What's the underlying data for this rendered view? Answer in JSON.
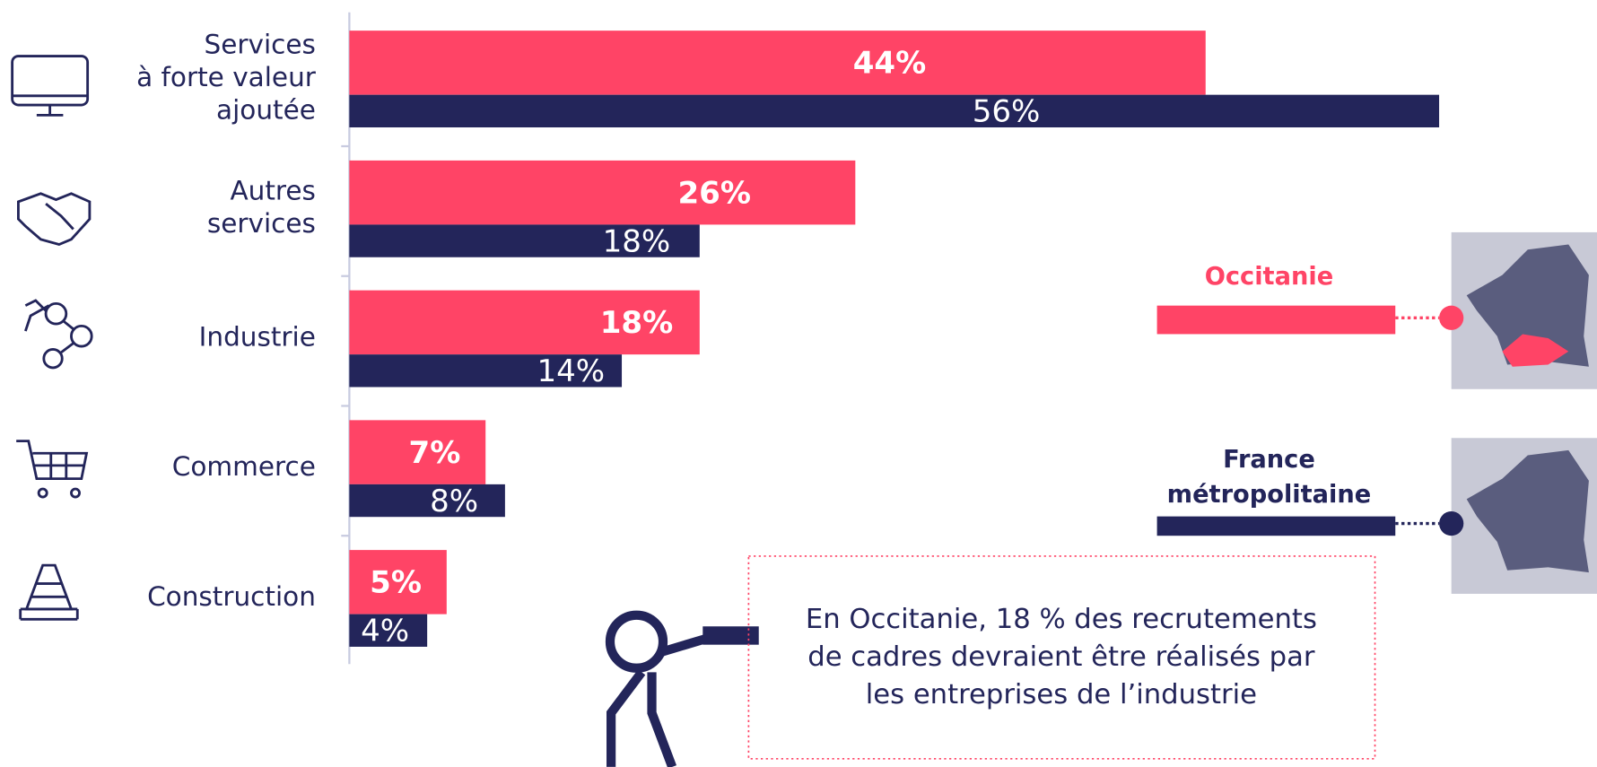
{
  "chart_data": {
    "type": "bar",
    "orientation": "horizontal",
    "categories": [
      [
        "Services",
        "à forte valeur",
        "ajoutée"
      ],
      [
        "Autres",
        "services"
      ],
      [
        "Industrie"
      ],
      [
        "Commerce"
      ],
      [
        "Construction"
      ]
    ],
    "series": [
      {
        "name": "Occitanie",
        "color": "#ff4466",
        "values": [
          44,
          26,
          18,
          7,
          5
        ],
        "value_labels": [
          "44%",
          "26%",
          "18%",
          "7%",
          "5%"
        ]
      },
      {
        "name": "France métropolitaine",
        "color": "#23255a",
        "values": [
          56,
          18,
          14,
          8,
          4
        ],
        "value_labels": [
          "56%",
          "18%",
          "14%",
          "8%",
          "4%"
        ]
      }
    ],
    "xlim": [
      0,
      56
    ],
    "annotation": [
      "En Occitanie, 18 % des recrutements",
      "de cadres devraient être réalisés par",
      "les entreprises de l’industrie"
    ]
  }
}
